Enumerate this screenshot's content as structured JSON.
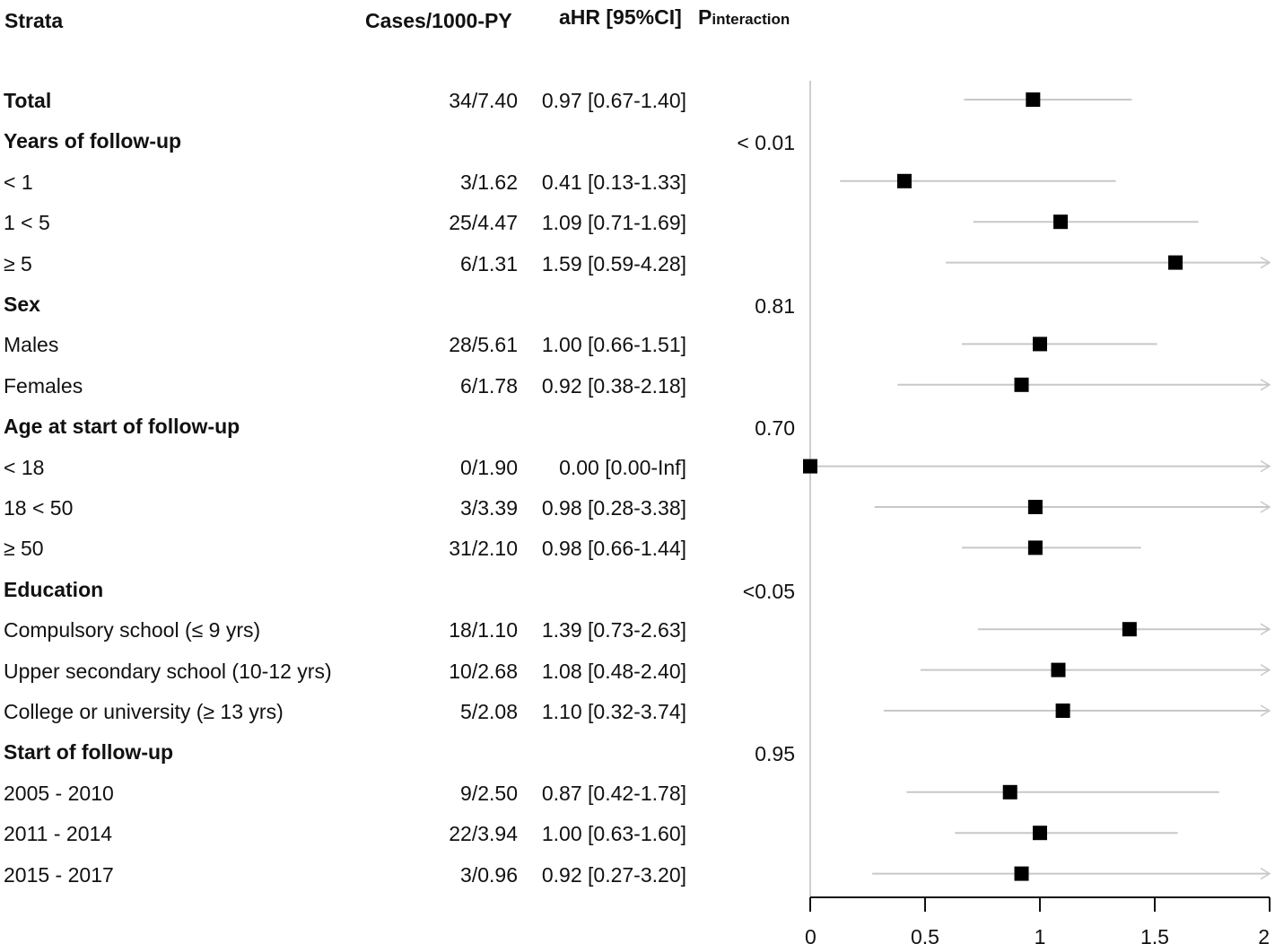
{
  "chart_data": {
    "type": "forest",
    "headers": {
      "strata": "Strata",
      "cases": "Cases/1000-PY",
      "ahr": "aHR [95%CI]",
      "p_main": "P",
      "p_sub": "interaction"
    },
    "xlim": [
      0,
      2
    ],
    "xticks": [
      "0",
      "0.5",
      "1",
      "1.5",
      "2"
    ],
    "tick_values": [
      0,
      0.5,
      1,
      1.5,
      2
    ],
    "reference_line": 0,
    "rows": [
      {
        "label": "Total",
        "heading": true,
        "cases": "34/7.40",
        "ahr": "0.97 [0.67-1.40]",
        "est": 0.97,
        "lo": 0.67,
        "hi": 1.4,
        "p": ""
      },
      {
        "label": "Years of follow-up",
        "heading": true,
        "cases": "",
        "ahr": "",
        "p": "< 0.01"
      },
      {
        "label": "< 1",
        "cases": "3/1.62",
        "ahr": "0.41 [0.13-1.33]",
        "est": 0.41,
        "lo": 0.13,
        "hi": 1.33,
        "p": ""
      },
      {
        "label": "1 < 5",
        "cases": "25/4.47",
        "ahr": "1.09 [0.71-1.69]",
        "est": 1.09,
        "lo": 0.71,
        "hi": 1.69,
        "p": ""
      },
      {
        "label": "≥ 5",
        "cases": "6/1.31",
        "ahr": "1.59 [0.59-4.28]",
        "est": 1.59,
        "lo": 0.59,
        "hi": 4.28,
        "p": ""
      },
      {
        "label": "Sex",
        "heading": true,
        "cases": "",
        "ahr": "",
        "p": "0.81"
      },
      {
        "label": "Males",
        "cases": "28/5.61",
        "ahr": "1.00 [0.66-1.51]",
        "est": 1.0,
        "lo": 0.66,
        "hi": 1.51,
        "p": ""
      },
      {
        "label": "Females",
        "cases": "6/1.78",
        "ahr": "0.92 [0.38-2.18]",
        "est": 0.92,
        "lo": 0.38,
        "hi": 2.18,
        "p": ""
      },
      {
        "label": "Age at start of follow-up",
        "heading": true,
        "cases": "",
        "ahr": "",
        "p": "0.70"
      },
      {
        "label": "< 18",
        "cases": "0/1.90",
        "ahr": "0.00 [0.00-Inf]",
        "est": 0.0,
        "lo": 0.0,
        "hi": 999,
        "p": ""
      },
      {
        "label": "18 < 50",
        "cases": "3/3.39",
        "ahr": "0.98 [0.28-3.38]",
        "est": 0.98,
        "lo": 0.28,
        "hi": 3.38,
        "p": ""
      },
      {
        "label": "≥ 50",
        "cases": "31/2.10",
        "ahr": "0.98 [0.66-1.44]",
        "est": 0.98,
        "lo": 0.66,
        "hi": 1.44,
        "p": ""
      },
      {
        "label": "Education",
        "heading": true,
        "cases": "",
        "ahr": "",
        "p": "<0.05"
      },
      {
        "label": "Compulsory school (≤ 9 yrs)",
        "cases": "18/1.10",
        "ahr": "1.39 [0.73-2.63]",
        "est": 1.39,
        "lo": 0.73,
        "hi": 2.63,
        "p": ""
      },
      {
        "label": "Upper secondary school (10-12 yrs)",
        "cases": "10/2.68",
        "ahr": "1.08 [0.48-2.40]",
        "est": 1.08,
        "lo": 0.48,
        "hi": 2.4,
        "p": ""
      },
      {
        "label": "College or university (≥ 13 yrs)",
        "cases": "5/2.08",
        "ahr": "1.10 [0.32-3.74]",
        "est": 1.1,
        "lo": 0.32,
        "hi": 3.74,
        "p": ""
      },
      {
        "label": "Start of follow-up",
        "heading": true,
        "cases": "",
        "ahr": "",
        "p": "0.95"
      },
      {
        "label": "2005 - 2010",
        "cases": "9/2.50",
        "ahr": "0.87 [0.42-1.78]",
        "est": 0.87,
        "lo": 0.42,
        "hi": 1.78,
        "p": ""
      },
      {
        "label": "2011 - 2014",
        "cases": "22/3.94",
        "ahr": "1.00 [0.63-1.60]",
        "est": 1.0,
        "lo": 0.63,
        "hi": 1.6,
        "p": ""
      },
      {
        "label": "2015 - 2017",
        "cases": "3/0.96",
        "ahr": "0.92 [0.27-3.20]",
        "est": 0.92,
        "lo": 0.27,
        "hi": 3.2,
        "p": ""
      }
    ]
  }
}
